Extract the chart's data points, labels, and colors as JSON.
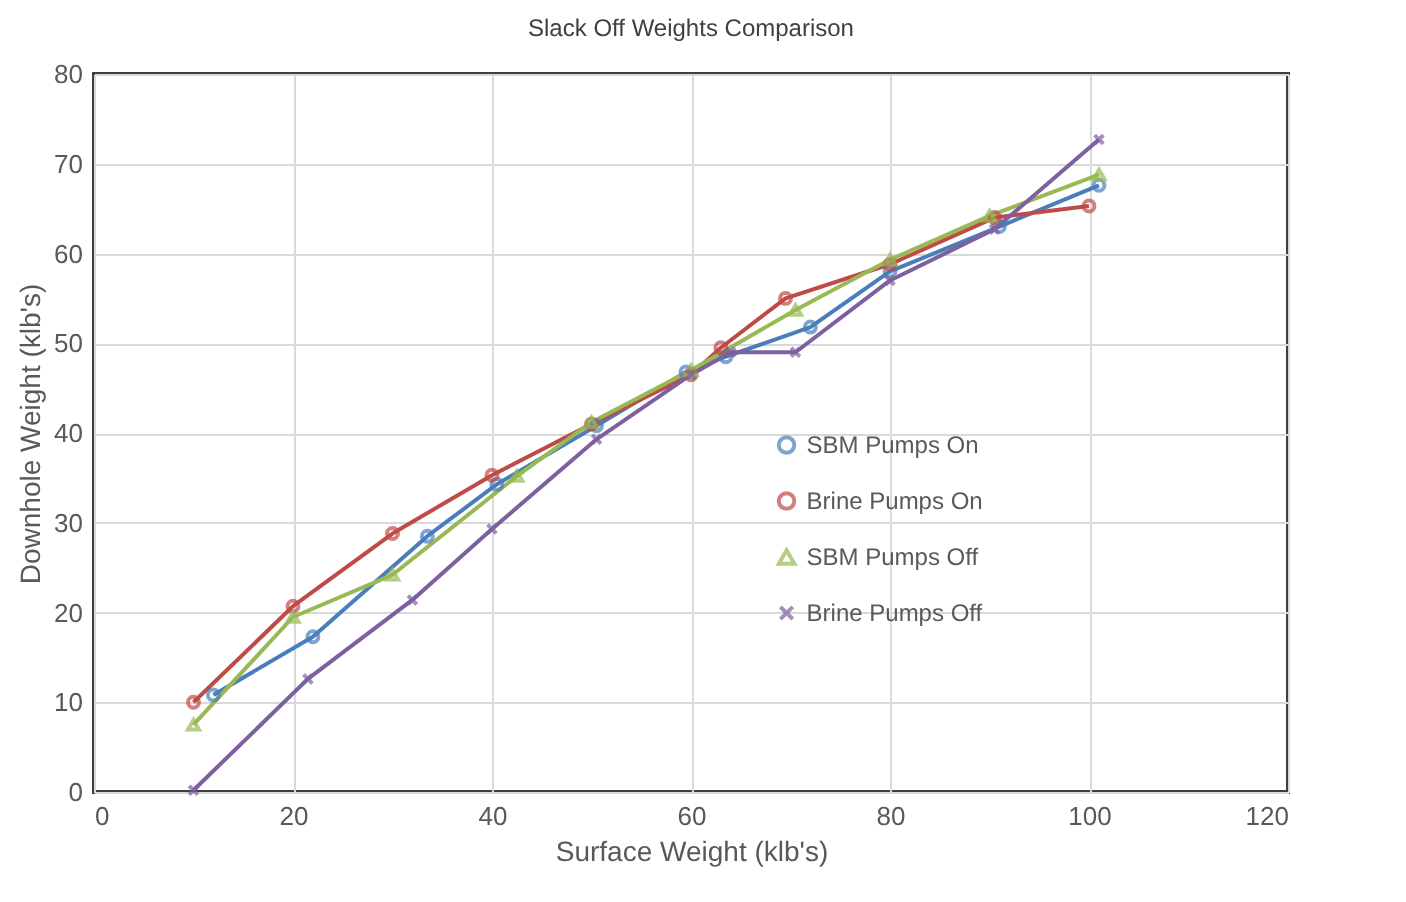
{
  "chart_data": {
    "type": "line",
    "title": "Slack Off Weights Comparison",
    "xlabel": "Surface Weight (klb's)",
    "ylabel": "Downhole Weight (klb's)",
    "xlim": [
      0,
      120
    ],
    "xticks": [
      0,
      20,
      40,
      60,
      80,
      100,
      120
    ],
    "ylim": [
      0,
      80
    ],
    "yticks": [
      0,
      10,
      20,
      30,
      40,
      50,
      60,
      70,
      80
    ],
    "grid": true,
    "legend": "right",
    "series": [
      {
        "name": "SBM Pumps On",
        "color": "#4a7ebb",
        "marker": "circle",
        "x": [
          12,
          22,
          33.5,
          40.5,
          50.5,
          59.5,
          63.5,
          72,
          80,
          91,
          101
        ],
        "values": [
          10.8,
          17.3,
          28.5,
          34.3,
          40.8,
          46.8,
          48.5,
          51.8,
          58,
          63,
          67.6
        ]
      },
      {
        "name": "Brine Pumps On",
        "color": "#be4b48",
        "marker": "circle",
        "x": [
          10,
          20,
          30,
          40,
          50,
          60,
          63,
          69.5,
          80,
          90.5,
          100
        ],
        "values": [
          10,
          20.7,
          28.8,
          35.3,
          41,
          46.5,
          49.5,
          55,
          58.8,
          64,
          65.3
        ]
      },
      {
        "name": "SBM Pumps Off",
        "color": "#98b954",
        "marker": "triangle",
        "x": [
          10,
          20,
          30,
          42.5,
          50,
          60,
          70.5,
          80,
          90,
          101
        ],
        "values": [
          7.5,
          19.5,
          24.2,
          35.2,
          41.2,
          47,
          53.7,
          59.3,
          64.2,
          68.8
        ]
      },
      {
        "name": "Brine Pumps Off",
        "color": "#7d60a0",
        "marker": "cross",
        "x": [
          10,
          21.5,
          32,
          40,
          50.5,
          60,
          64,
          70.5,
          80,
          90.5,
          101
        ],
        "values": [
          0.2,
          12.6,
          21.4,
          29.3,
          39.3,
          46.5,
          49,
          49,
          57,
          62.7,
          72.7
        ]
      }
    ]
  }
}
